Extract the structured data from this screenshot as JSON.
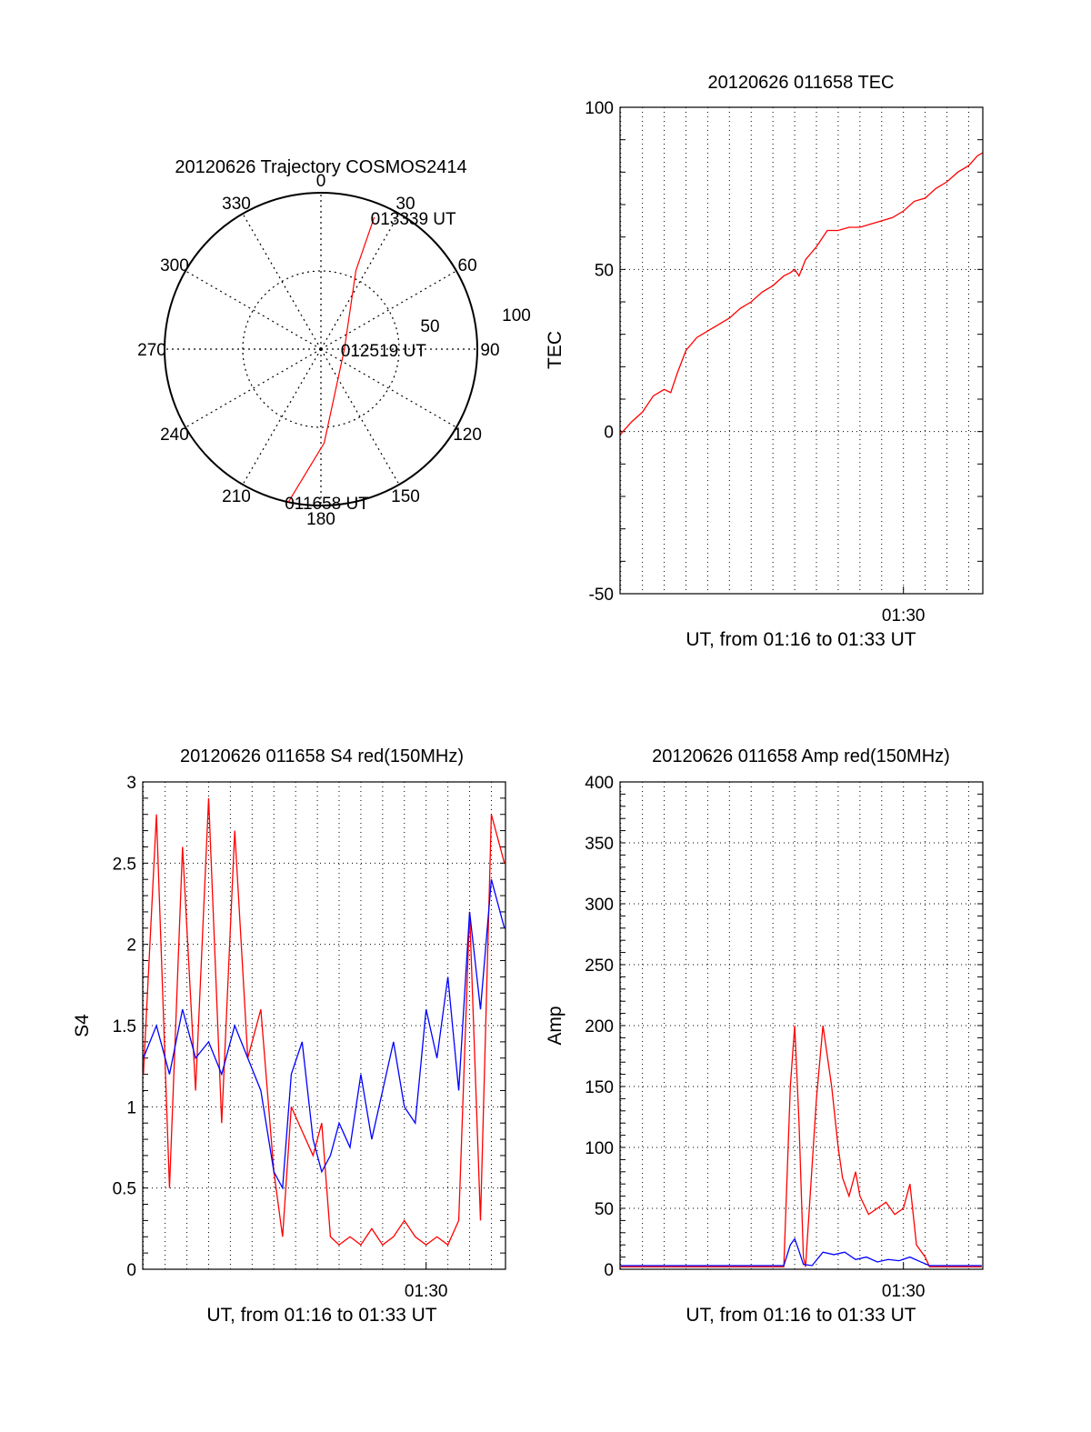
{
  "chart_data": [
    {
      "type": "polar",
      "title": "20120626 Trajectory COSMOS2414",
      "angle_labels": [
        "0",
        "30",
        "60",
        "90",
        "120",
        "150",
        "180",
        "210",
        "240",
        "270",
        "300",
        "330"
      ],
      "radius_labels": [
        "50",
        "100"
      ],
      "rlim": [
        0,
        100
      ],
      "series": [
        {
          "color": "#ff0000",
          "points": [
            {
              "az": 192,
              "r": 100
            },
            {
              "az": 178,
              "r": 60
            },
            {
              "az": 90,
              "r": 15
            },
            {
              "az": 24,
              "r": 55
            },
            {
              "az": 22,
              "r": 91
            }
          ]
        }
      ],
      "annotations": [
        {
          "text": "011658 UT",
          "az": 192,
          "r": 100
        },
        {
          "text": "012519 UT",
          "az": 90,
          "r": 15
        },
        {
          "text": "013339 UT",
          "az": 22,
          "r": 91
        }
      ]
    },
    {
      "type": "line",
      "title": "20120626 011658 TEC",
      "xlabel": "UT, from 01:16 to 01:33 UT",
      "ylabel": "TEC",
      "ylim": [
        -50,
        100
      ],
      "yticks": [
        "-50",
        "0",
        "50",
        "100"
      ],
      "xlim_minutes": [
        76.97,
        93.65
      ],
      "xticks": [
        {
          "value": 90,
          "label": "01:30"
        }
      ],
      "grid": true,
      "series": [
        {
          "color": "#ff0000",
          "x_minutes": [
            76.97,
            77.5,
            78.0,
            78.5,
            79.0,
            79.3,
            79.6,
            80.0,
            80.5,
            81.0,
            81.5,
            82.0,
            82.5,
            83.0,
            83.5,
            84.0,
            84.5,
            84.8,
            85.0,
            85.2,
            85.5,
            86.0,
            86.5,
            87.0,
            87.5,
            88.0,
            88.5,
            89.0,
            89.5,
            90.0,
            90.5,
            91.0,
            91.5,
            92.0,
            92.5,
            93.0,
            93.4,
            93.65
          ],
          "y": [
            -1,
            3,
            6,
            11,
            13,
            12,
            18,
            25,
            29,
            31,
            33,
            35,
            38,
            40,
            43,
            45,
            48,
            49,
            50,
            48,
            53,
            57,
            62,
            62,
            63,
            63,
            64,
            65,
            66,
            68,
            71,
            72,
            75,
            77,
            80,
            82,
            85,
            86
          ]
        }
      ]
    },
    {
      "type": "line",
      "title": "20120626 011658 S4 red(150MHz)",
      "xlabel": "UT, from 01:16 to 01:33 UT",
      "ylabel": "S4",
      "ylim": [
        0,
        3
      ],
      "yticks": [
        "0",
        "0.5",
        "1",
        "1.5",
        "2",
        "2.5",
        "3"
      ],
      "xlim_minutes": [
        76.97,
        93.65
      ],
      "xticks": [
        {
          "value": 90,
          "label": "01:30"
        }
      ],
      "grid": true,
      "series": [
        {
          "color": "#ff0000",
          "x_minutes": [
            77.0,
            77.6,
            78.2,
            78.8,
            79.4,
            80.0,
            80.6,
            81.2,
            81.8,
            82.4,
            83.0,
            83.4,
            83.8,
            84.3,
            84.8,
            85.2,
            85.6,
            86.0,
            86.5,
            87.0,
            87.5,
            88.0,
            88.5,
            89.0,
            89.5,
            90.0,
            90.5,
            91.0,
            91.5,
            92.0,
            92.5,
            93.0,
            93.6
          ],
          "y": [
            1.2,
            2.8,
            0.5,
            2.6,
            1.1,
            2.9,
            0.9,
            2.7,
            1.3,
            1.6,
            0.6,
            0.2,
            1.0,
            0.85,
            0.7,
            0.9,
            0.2,
            0.15,
            0.2,
            0.15,
            0.25,
            0.15,
            0.2,
            0.3,
            0.2,
            0.15,
            0.2,
            0.15,
            0.3,
            2.2,
            0.3,
            2.8,
            2.5
          ]
        },
        {
          "color": "#0000ff",
          "x_minutes": [
            77.0,
            77.6,
            78.2,
            78.8,
            79.4,
            80.0,
            80.6,
            81.2,
            81.8,
            82.4,
            83.0,
            83.4,
            83.8,
            84.3,
            84.8,
            85.2,
            85.6,
            86.0,
            86.5,
            87.0,
            87.5,
            88.0,
            88.5,
            89.0,
            89.5,
            90.0,
            90.5,
            91.0,
            91.5,
            92.0,
            92.5,
            93.0,
            93.6
          ],
          "y": [
            1.3,
            1.5,
            1.2,
            1.6,
            1.3,
            1.4,
            1.2,
            1.5,
            1.3,
            1.1,
            0.6,
            0.5,
            1.2,
            1.4,
            0.8,
            0.6,
            0.7,
            0.9,
            0.75,
            1.2,
            0.8,
            1.1,
            1.4,
            1.0,
            0.9,
            1.6,
            1.3,
            1.8,
            1.1,
            2.2,
            1.6,
            2.4,
            2.1
          ]
        }
      ]
    },
    {
      "type": "line",
      "title": "20120626 011658 Amp red(150MHz)",
      "xlabel": "UT, from 01:16 to 01:33 UT",
      "ylabel": "Amp",
      "ylim": [
        0,
        400
      ],
      "yticks": [
        "0",
        "50",
        "100",
        "150",
        "200",
        "250",
        "300",
        "350",
        "400"
      ],
      "xlim_minutes": [
        76.97,
        93.65
      ],
      "xticks": [
        {
          "value": 90,
          "label": "01:30"
        }
      ],
      "grid": true,
      "series": [
        {
          "color": "#ff0000",
          "x_minutes": [
            77.0,
            80.0,
            84.5,
            84.8,
            85.0,
            85.2,
            85.4,
            85.5,
            86.0,
            86.3,
            86.7,
            87.0,
            87.2,
            87.5,
            87.8,
            88.0,
            88.4,
            88.8,
            89.2,
            89.6,
            90.0,
            90.3,
            90.6,
            91.0,
            91.2,
            93.6
          ],
          "y": [
            2,
            2,
            2,
            150,
            200,
            120,
            10,
            2,
            140,
            200,
            150,
            100,
            75,
            60,
            80,
            60,
            45,
            50,
            55,
            45,
            50,
            70,
            20,
            10,
            2,
            2
          ]
        },
        {
          "color": "#0000ff",
          "x_minutes": [
            77.0,
            80.0,
            84.5,
            84.8,
            85.0,
            85.2,
            85.4,
            85.8,
            86.3,
            86.8,
            87.3,
            87.8,
            88.3,
            88.8,
            89.3,
            89.8,
            90.3,
            90.8,
            91.2,
            93.6
          ],
          "y": [
            3,
            3,
            3,
            20,
            25,
            15,
            4,
            3,
            14,
            12,
            14,
            8,
            10,
            6,
            8,
            7,
            10,
            6,
            3,
            3
          ]
        }
      ]
    }
  ]
}
